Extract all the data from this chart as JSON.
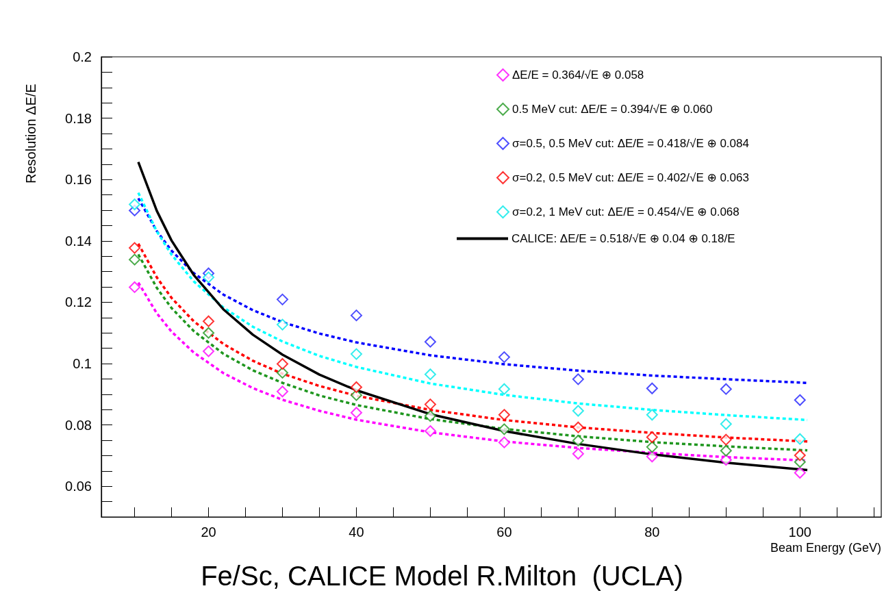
{
  "chart_data": {
    "type": "line",
    "xlabel": "Beam Energy (GeV)",
    "ylabel": "Resolution ΔE/E",
    "annotations": [
      "Fe/Sc, CALICE Model R.Milton  (UCLA)"
    ],
    "x": [
      10,
      20,
      30,
      40,
      50,
      60,
      70,
      80,
      90,
      100
    ],
    "xlim": [
      5.5,
      111
    ],
    "xticks": [
      {
        "value": 10,
        "label": null
      },
      {
        "value": 15,
        "label": null
      },
      20,
      {
        "value": 25,
        "label": null
      },
      {
        "value": 30,
        "label": null
      },
      {
        "value": 35,
        "label": null
      },
      40,
      {
        "value": 45,
        "label": null
      },
      {
        "value": 50,
        "label": null
      },
      {
        "value": 55,
        "label": null
      },
      60,
      {
        "value": 65,
        "label": null
      },
      {
        "value": 70,
        "label": null
      },
      {
        "value": 75,
        "label": null
      },
      80,
      {
        "value": 85,
        "label": null
      },
      {
        "value": 90,
        "label": null
      },
      {
        "value": 95,
        "label": null
      },
      100,
      {
        "value": 105,
        "label": null
      },
      {
        "value": 110,
        "label": null
      }
    ],
    "ylim": [
      0.05,
      0.2
    ],
    "yticks": [
      {
        "value": 0.055,
        "label": null
      },
      0.06,
      {
        "value": 0.065,
        "label": null
      },
      {
        "value": 0.07,
        "label": null
      },
      {
        "value": 0.075,
        "label": null
      },
      0.08,
      {
        "value": 0.085,
        "label": null
      },
      {
        "value": 0.09,
        "label": null
      },
      {
        "value": 0.095,
        "label": null
      },
      0.1,
      {
        "value": 0.105,
        "label": null
      },
      {
        "value": 0.11,
        "label": null
      },
      {
        "value": 0.115,
        "label": null
      },
      0.12,
      {
        "value": 0.125,
        "label": null
      },
      {
        "value": 0.13,
        "label": null
      },
      {
        "value": 0.135,
        "label": null
      },
      0.14,
      {
        "value": 0.145,
        "label": null
      },
      {
        "value": 0.15,
        "label": null
      },
      {
        "value": 0.155,
        "label": null
      },
      0.16,
      {
        "value": 0.165,
        "label": null
      },
      {
        "value": 0.17,
        "label": null
      },
      {
        "value": 0.175,
        "label": null
      },
      0.18,
      {
        "value": 0.185,
        "label": null
      },
      {
        "value": 0.19,
        "label": null
      },
      {
        "value": 0.195,
        "label": null
      },
      0.2
    ],
    "grid": false,
    "legend": "top right",
    "series": [
      {
        "type": "scatter",
        "name": "ΔE/E = 0.364/√E ⊕ 0.058",
        "color": "#ff00ff",
        "marker": "diamond",
        "values": [
          0.1249,
          0.104,
          0.0909,
          0.084,
          0.078,
          0.0743,
          0.0706,
          0.0697,
          0.0686,
          0.0644
        ]
      },
      {
        "color": "#ff00ff",
        "line_style": "dashed",
        "x": [
          10.5,
          13,
          15,
          18,
          22,
          26,
          30,
          35,
          40,
          50,
          60,
          70,
          80,
          90,
          101
        ],
        "values": [
          0.1264,
          0.1164,
          0.1104,
          0.1036,
          0.0969,
          0.092,
          0.0882,
          0.0846,
          0.0817,
          0.0776,
          0.0746,
          0.0725,
          0.0709,
          0.0695,
          0.0684
        ]
      },
      {
        "type": "scatter",
        "name": "0.5 MeV cut: ΔE/E = 0.394/√E ⊕ 0.060",
        "color": "#1e961e",
        "marker": "diamond",
        "values": [
          0.1339,
          0.11,
          0.097,
          0.0897,
          0.0829,
          0.0786,
          0.0749,
          0.0728,
          0.0716,
          0.0679
        ]
      },
      {
        "color": "#1e961e",
        "line_style": "dashed",
        "x": [
          10.5,
          13,
          15,
          18,
          22,
          26,
          30,
          35,
          40,
          50,
          60,
          70,
          80,
          90,
          101
        ],
        "values": [
          0.1356,
          0.1247,
          0.1181,
          0.1106,
          0.1032,
          0.0978,
          0.0937,
          0.0896,
          0.0865,
          0.0819,
          0.0787,
          0.0763,
          0.0744,
          0.073,
          0.0717
        ]
      },
      {
        "type": "scatter",
        "name": "σ=0.5, 0.5 MeV cut: ΔE/E = 0.418/√E ⊕ 0.084",
        "color": "#2020ff",
        "marker": "diamond",
        "values": [
          0.1499,
          0.1294,
          0.1209,
          0.1157,
          0.1071,
          0.1021,
          0.0949,
          0.0919,
          0.0917,
          0.0881
        ]
      },
      {
        "color": "#0000ff",
        "line_style": "dashed",
        "x": [
          10.5,
          13,
          15,
          18,
          22,
          26,
          30,
          35,
          40,
          50,
          60,
          70,
          80,
          90,
          101
        ],
        "values": [
          0.1539,
          0.1432,
          0.1368,
          0.1295,
          0.1225,
          0.1174,
          0.1135,
          0.1098,
          0.1069,
          0.1027,
          0.0998,
          0.0977,
          0.0961,
          0.0949,
          0.0937
        ]
      },
      {
        "type": "scatter",
        "name": "σ=0.2, 0.5 MeV cut: ΔE/E = 0.402/√E ⊕ 0.063",
        "color": "#ff0000",
        "marker": "diamond",
        "values": [
          0.1377,
          0.1138,
          0.0999,
          0.0923,
          0.0867,
          0.0833,
          0.0792,
          0.076,
          0.0752,
          0.0701
        ]
      },
      {
        "color": "#ff0000",
        "line_style": "dashed",
        "x": [
          10.5,
          13,
          15,
          18,
          22,
          26,
          30,
          35,
          40,
          50,
          60,
          70,
          80,
          90,
          101
        ],
        "values": [
          0.1391,
          0.1281,
          0.1214,
          0.1138,
          0.1064,
          0.1009,
          0.0967,
          0.0927,
          0.0895,
          0.0849,
          0.0816,
          0.0792,
          0.0774,
          0.0759,
          0.0746
        ]
      },
      {
        "type": "scatter",
        "name": "σ=0.2, 1 MeV cut: ΔE/E = 0.454/√E ⊕ 0.068",
        "color": "#00e8e8",
        "marker": "diamond",
        "values": [
          0.1519,
          0.1281,
          0.1127,
          0.1031,
          0.0965,
          0.0917,
          0.0846,
          0.0833,
          0.0803,
          0.0754
        ]
      },
      {
        "color": "#00ffff",
        "line_style": "dashed",
        "x": [
          10.5,
          13,
          15,
          18,
          22,
          26,
          30,
          35,
          40,
          50,
          60,
          70,
          80,
          90,
          101
        ],
        "values": [
          0.1557,
          0.1431,
          0.1355,
          0.1268,
          0.1183,
          0.112,
          0.1072,
          0.1025,
          0.0989,
          0.0935,
          0.0898,
          0.087,
          0.0849,
          0.0832,
          0.0816
        ]
      },
      {
        "name": "CALICE: ΔE/E = 0.518/√E ⊕ 0.04 ⊕ 0.18/E",
        "color": "#000000",
        "line_style": "solid",
        "x": [
          10.5,
          13,
          15,
          18,
          22,
          26,
          30,
          35,
          40,
          50,
          60,
          70,
          80,
          90,
          101
        ],
        "values": [
          0.1657,
          0.1498,
          0.1401,
          0.1289,
          0.1177,
          0.1094,
          0.1029,
          0.0964,
          0.0913,
          0.0835,
          0.078,
          0.0738,
          0.0704,
          0.0677,
          0.0653
        ]
      }
    ]
  }
}
